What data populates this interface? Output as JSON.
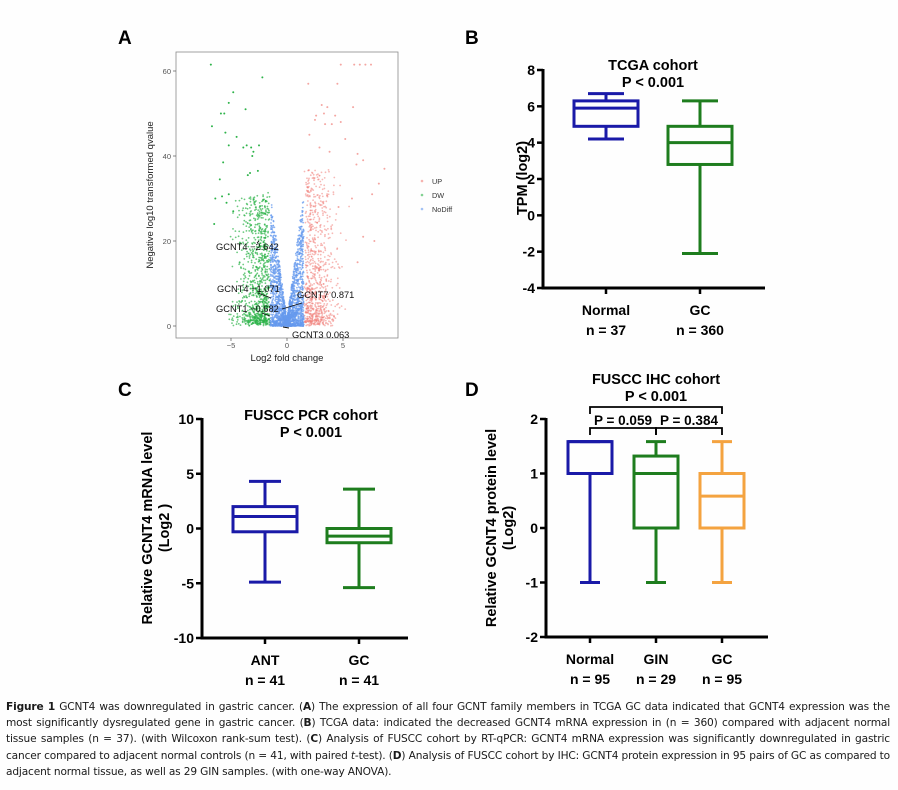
{
  "figure": {
    "panel_labels": [
      "A",
      "B",
      "C",
      "D"
    ]
  },
  "caption": {
    "label": "Figure 1",
    "parts": [
      {
        "t": " GCNT4 was downregulated in gastric cancer. (",
        "b": false
      },
      {
        "t": "A",
        "b": true
      },
      {
        "t": ") The expression of all four GCNT family members in TCGA GC data indicated that GCNT4 expression was the most significantly dysregulated gene in gastric cancer. (",
        "b": false
      },
      {
        "t": "B",
        "b": true
      },
      {
        "t": ") TCGA data: indicated the decreased GCNT4 mRNA expression in (n = 360) compared with adjacent normal tissue samples (n = 37). (with Wilcoxon rank-sum test). (",
        "b": false
      },
      {
        "t": "C",
        "b": true
      },
      {
        "t": ") Analysis of FUSCC cohort by RT-qPCR: GCNT4 mRNA expression was significantly downregulated in gastric cancer compared to adjacent normal controls (n = 41, with paired ",
        "b": false
      },
      {
        "t": "t",
        "i": true
      },
      {
        "t": "-test). (",
        "b": false
      },
      {
        "t": "D",
        "b": true
      },
      {
        "t": ") Analysis of FUSCC cohort by IHC: GCNT4 protein expression in 95 pairs of GC as compared to adjacent normal tissue, as well as 29 GIN samples. (with one-way ANOVA).",
        "b": false
      }
    ]
  },
  "chart_data": [
    {
      "panel": "A",
      "type": "scatter",
      "title": "",
      "xlabel": "Log2 fold change",
      "ylabel": "Negative log10 transformed qvalue",
      "xlim": [
        -9.5,
        10
      ],
      "ylim": [
        -2.5,
        64
      ],
      "xticks": [
        -5,
        0,
        5
      ],
      "yticks": [
        0,
        20,
        40,
        60
      ],
      "legend": {
        "placement": "right",
        "entries": [
          {
            "name": "UP",
            "color": "#f0807a"
          },
          {
            "name": "DW",
            "color": "#2eb34a"
          },
          {
            "name": "NoDiff",
            "color": "#6699ee"
          }
        ]
      },
      "thresholds": {
        "log2fc": 1.5
      },
      "annotations": [
        {
          "label": "GCNT4 −2.642",
          "x": -2.64,
          "y": 20.5
        },
        {
          "label": "GCNT4 −1.071",
          "x": -1.07,
          "y": 6.5
        },
        {
          "label": "GCNT1 −0.682",
          "x": -0.68,
          "y": 2.5
        },
        {
          "label": "GCNT7 0.871",
          "x": 0.87,
          "y": 6.0
        },
        {
          "label": "GCNT3 0.063",
          "x": 0.06,
          "y": 0.2
        }
      ],
      "outlier_points": {
        "DW": [
          [
            -6.8,
            61.5
          ],
          [
            -2.2,
            58.5
          ],
          [
            -4.8,
            55
          ],
          [
            -5.2,
            52.5
          ],
          [
            -3.7,
            51
          ],
          [
            -5.9,
            50
          ],
          [
            -5.6,
            50
          ],
          [
            -6.7,
            47
          ],
          [
            -5.5,
            45.5
          ],
          [
            -4.5,
            44.5
          ],
          [
            -2.5,
            42.5
          ],
          [
            -3.6,
            42.5
          ],
          [
            -5.2,
            42.5
          ],
          [
            -3.9,
            42
          ],
          [
            -3.2,
            42
          ],
          [
            -3.0,
            41
          ],
          [
            -3.1,
            40
          ],
          [
            -5.7,
            38.5
          ],
          [
            -3.3,
            36
          ],
          [
            -2.6,
            36.5
          ],
          [
            -3.5,
            35.5
          ],
          [
            -6.0,
            34.5
          ],
          [
            -5.2,
            31
          ],
          [
            -5.8,
            30.5
          ],
          [
            -5.4,
            29
          ],
          [
            -6.5,
            24
          ],
          [
            -4.8,
            27
          ],
          [
            -6.4,
            30
          ]
        ],
        "UP": [
          [
            4.8,
            61.5
          ],
          [
            6.0,
            61.5
          ],
          [
            6.5,
            61.5
          ],
          [
            7.0,
            61.5
          ],
          [
            7.5,
            61.5
          ],
          [
            1.9,
            57
          ],
          [
            4.5,
            57
          ],
          [
            5.9,
            51.5
          ],
          [
            3.1,
            52
          ],
          [
            3.6,
            51.5
          ],
          [
            3.3,
            50
          ],
          [
            2.5,
            48.5
          ],
          [
            2.6,
            49.5
          ],
          [
            4.3,
            49.5
          ],
          [
            4.8,
            48
          ],
          [
            3.4,
            47.5
          ],
          [
            4.0,
            47.5
          ],
          [
            2.0,
            45
          ],
          [
            5.2,
            44
          ],
          [
            6.3,
            40.5
          ],
          [
            6.8,
            39
          ],
          [
            2.9,
            42
          ],
          [
            3.8,
            41
          ],
          [
            8.7,
            37
          ],
          [
            6.2,
            38
          ],
          [
            8.2,
            33.5
          ],
          [
            7.6,
            31
          ],
          [
            5.8,
            30
          ],
          [
            4.6,
            28
          ],
          [
            6.8,
            21
          ],
          [
            7.8,
            20
          ],
          [
            6.3,
            15
          ]
        ]
      }
    },
    {
      "panel": "B",
      "type": "box",
      "title": "TCGA cohort",
      "subtitle": "P < 0.001",
      "ylabel": "TPM (log2)",
      "ylim": [
        -4,
        8
      ],
      "yticks": [
        -4,
        -2,
        0,
        2,
        4,
        6,
        8
      ],
      "categories": [
        "Normal",
        "GC"
      ],
      "n_labels": [
        "n = 37",
        "n = 360"
      ],
      "boxes": [
        {
          "name": "Normal",
          "min": 4.2,
          "q1": 4.9,
          "median": 5.9,
          "q3": 6.3,
          "max": 6.7,
          "color": "#1a1aa8"
        },
        {
          "name": "GC",
          "min": -2.1,
          "q1": 2.8,
          "median": 4.0,
          "q3": 4.9,
          "max": 6.3,
          "color": "#1e7d1e"
        }
      ]
    },
    {
      "panel": "C",
      "type": "box",
      "title": "FUSCC PCR cohort",
      "subtitle": "P < 0.001",
      "ylabel": "Relative GCNT4 mRNA level",
      "ylabel2": "(Log2 )",
      "ylim": [
        -10,
        10
      ],
      "yticks": [
        -10,
        -5,
        0,
        5,
        10
      ],
      "categories": [
        "ANT",
        "GC"
      ],
      "n_labels": [
        "n = 41",
        "n = 41"
      ],
      "boxes": [
        {
          "name": "ANT",
          "min": -4.9,
          "q1": -0.3,
          "median": 1.1,
          "q3": 2.0,
          "max": 4.3,
          "color": "#1a1aa8"
        },
        {
          "name": "GC",
          "min": -5.4,
          "q1": -1.3,
          "median": -0.7,
          "q3": 0.0,
          "max": 3.6,
          "color": "#1e7d1e"
        }
      ]
    },
    {
      "panel": "D",
      "type": "box",
      "title": "FUSCC IHC cohort",
      "subtitle": "P < 0.001",
      "ylabel": "Relative GCNT4 protein level",
      "ylabel2": "(Log2)",
      "ylim": [
        -2,
        2
      ],
      "yticks": [
        -2,
        -1,
        0,
        1,
        2
      ],
      "categories": [
        "Normal",
        "GIN",
        "GC"
      ],
      "n_labels": [
        "n = 95",
        "n = 29",
        "n = 95"
      ],
      "comparisons": [
        {
          "from": 0,
          "to": 2,
          "label": "P < 0.001",
          "level": "outer"
        },
        {
          "from": 0,
          "to": 1,
          "label": "P = 0.059",
          "level": "inner"
        },
        {
          "from": 1,
          "to": 2,
          "label": "P = 0.384",
          "level": "inner"
        }
      ],
      "boxes": [
        {
          "name": "Normal",
          "min": -1.0,
          "q1": 1.0,
          "median": 1.585,
          "q3": 1.585,
          "max": 1.585,
          "color": "#1a1aa8"
        },
        {
          "name": "GIN",
          "min": -1.0,
          "q1": 0.0,
          "median": 1.0,
          "q3": 1.32,
          "max": 1.585,
          "color": "#1e7d1e"
        },
        {
          "name": "GC",
          "min": -1.0,
          "q1": 0.0,
          "median": 0.585,
          "q3": 1.0,
          "max": 1.585,
          "color": "#f4a340"
        }
      ]
    }
  ]
}
